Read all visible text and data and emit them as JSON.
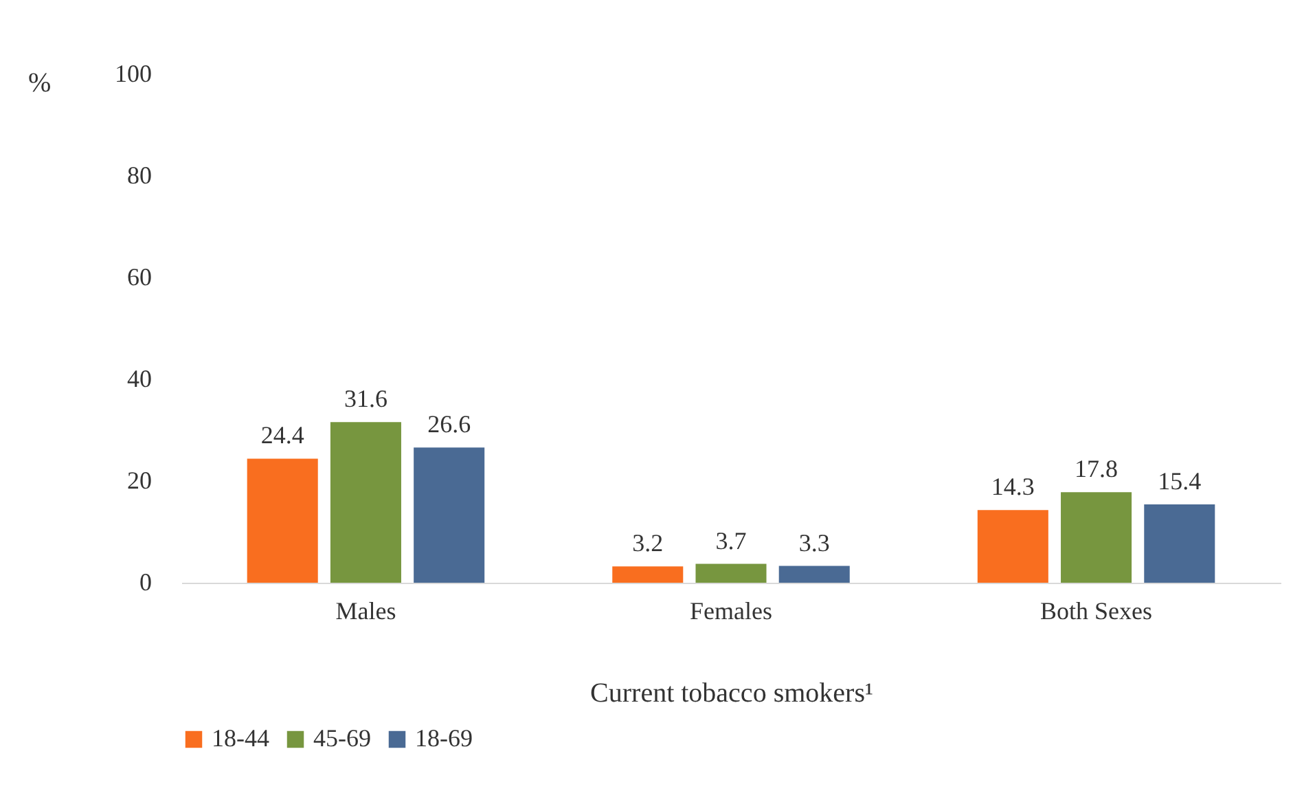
{
  "chart_data": {
    "type": "bar",
    "xlabel": "Current tobacco smokers¹",
    "ylabel": "%",
    "categories": [
      "Males",
      "Females",
      "Both Sexes"
    ],
    "series": [
      {
        "name": "18-44",
        "color": "#f96e1f",
        "values": [
          24.4,
          3.2,
          14.3
        ]
      },
      {
        "name": "45-69",
        "color": "#77963f",
        "values": [
          31.6,
          3.7,
          17.8
        ]
      },
      {
        "name": "18-69",
        "color": "#4a6a94",
        "values": [
          26.6,
          3.3,
          15.4
        ]
      }
    ],
    "ylim": [
      0,
      100
    ],
    "yticks": [
      0,
      20,
      40,
      60,
      80,
      100
    ],
    "grid": false,
    "legend": "bottom",
    "data_labels": true
  }
}
